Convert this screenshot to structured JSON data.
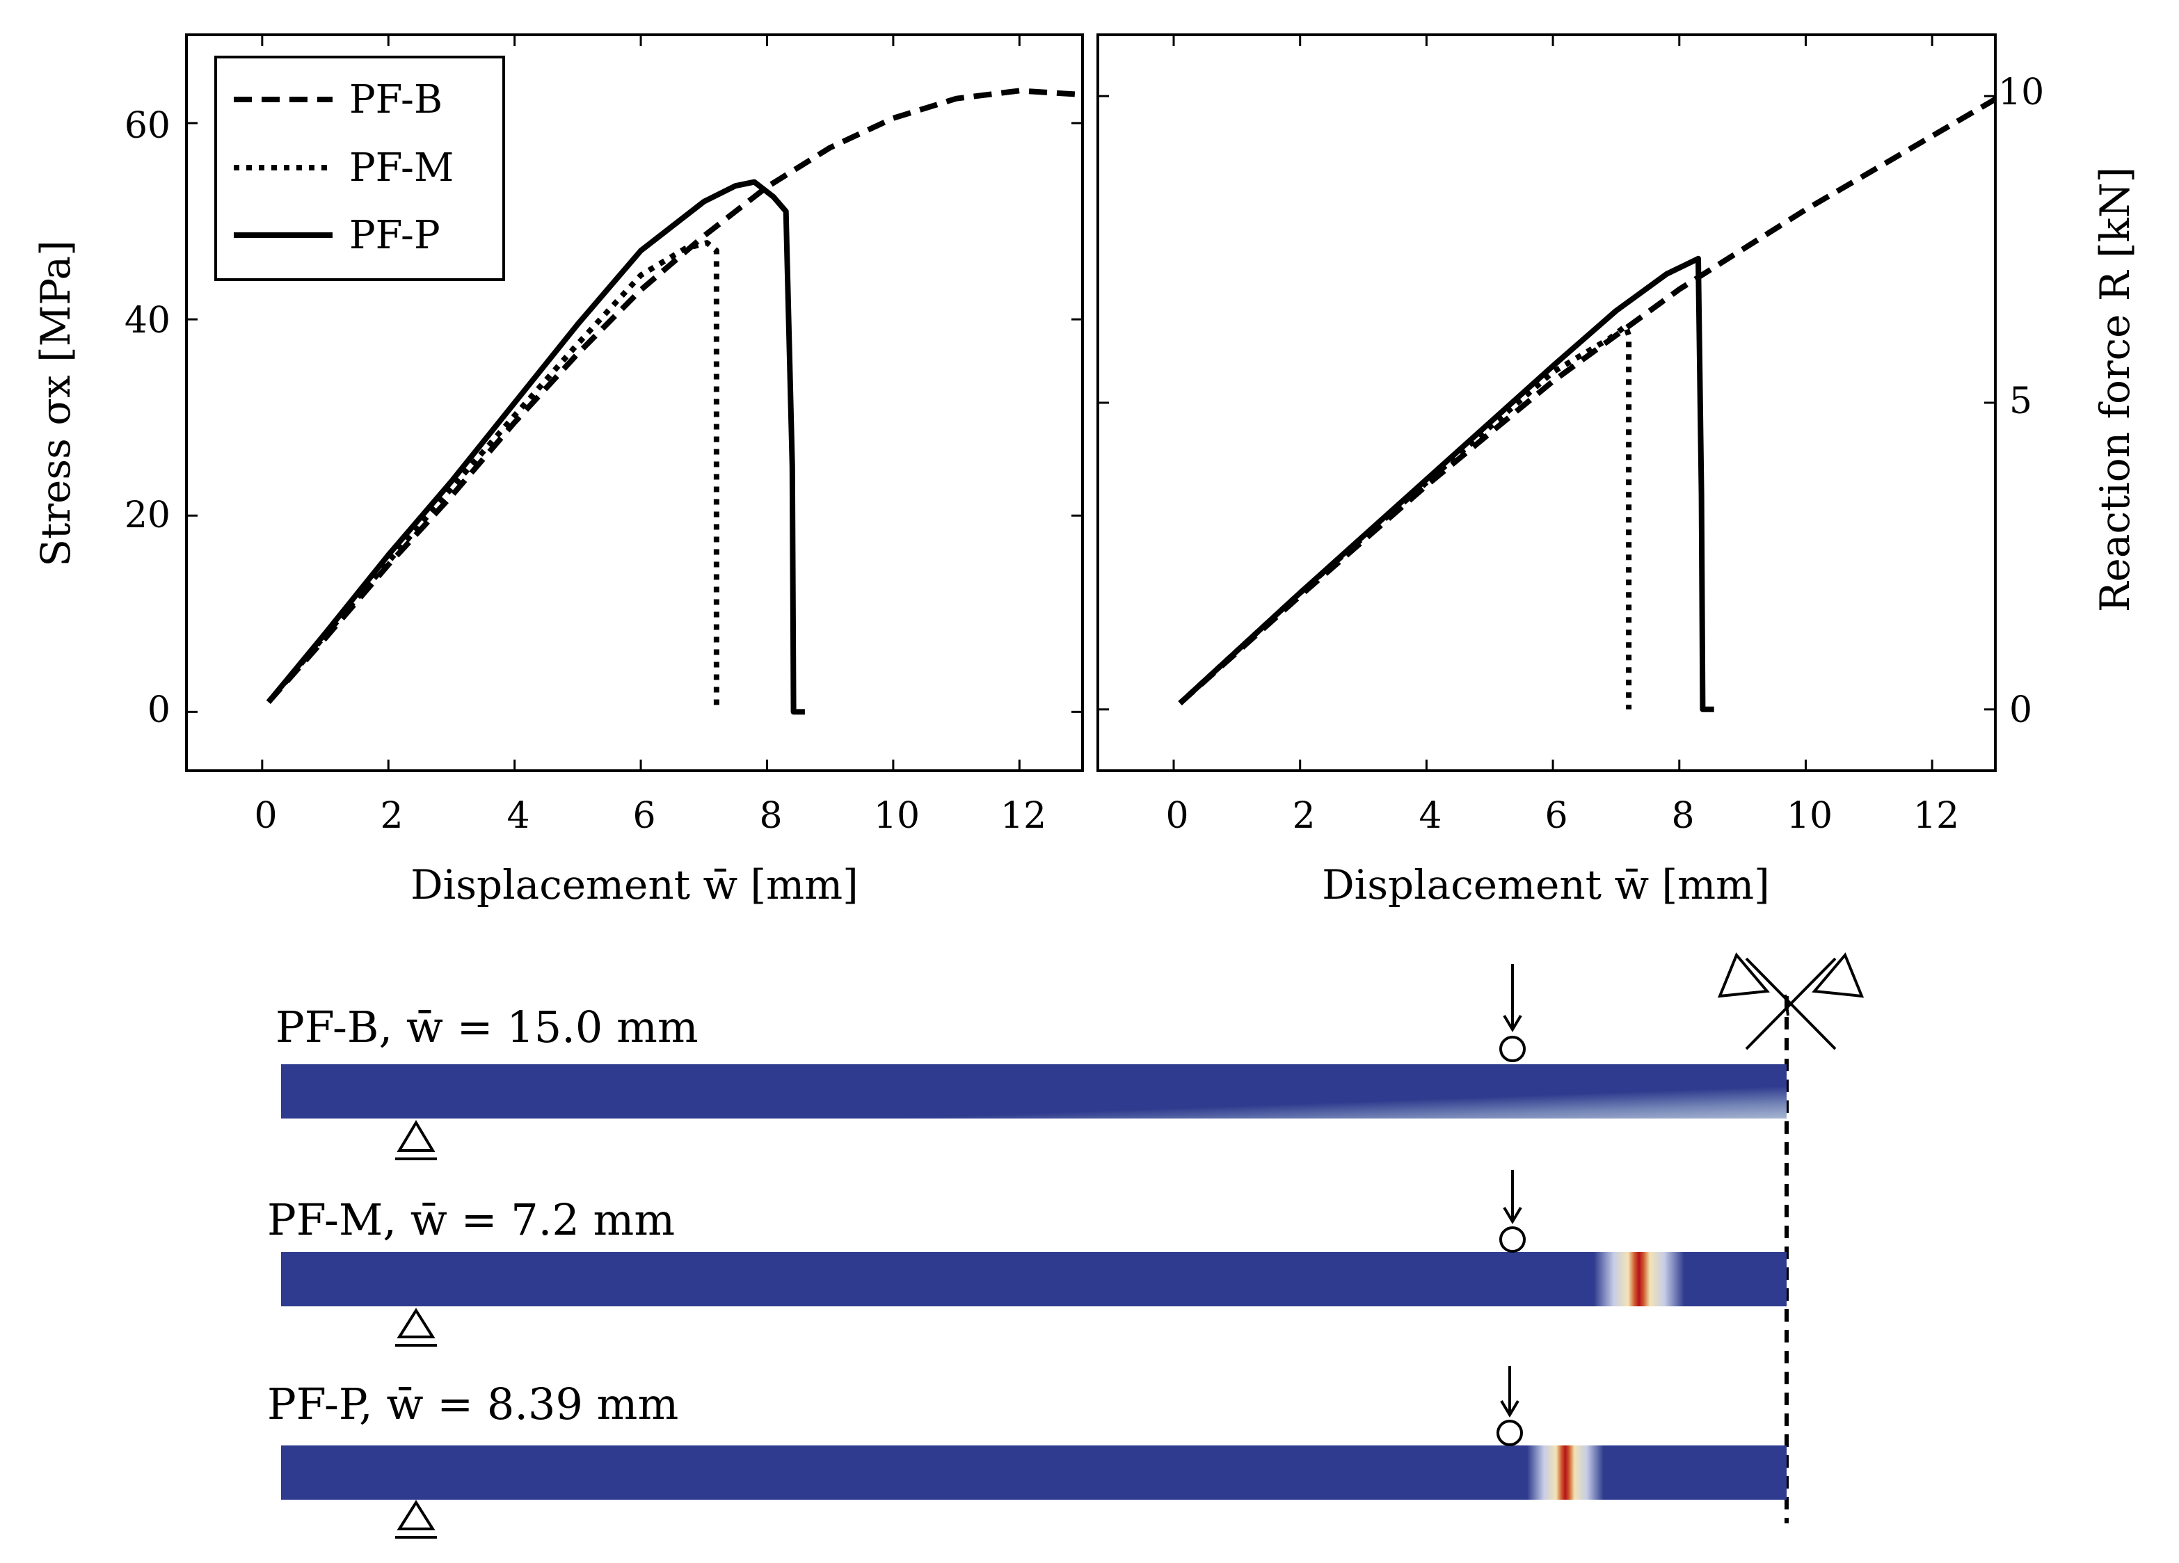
{
  "chart_data": [
    {
      "type": "line",
      "panel": "left",
      "xlabel": "Displacement w̄ [mm]",
      "ylabel": "Stress σx [MPa]",
      "xlim": [
        -1.2,
        13
      ],
      "ylim": [
        -6,
        69
      ],
      "xticks": [
        0,
        2,
        4,
        6,
        8,
        10,
        12
      ],
      "yticks": [
        0,
        20,
        40,
        60
      ],
      "xtick_labels": [
        "0",
        "2",
        "4",
        "6",
        "8",
        "10",
        "12"
      ],
      "ytick_labels": [
        "0",
        "20",
        "40",
        "60"
      ],
      "legend": {
        "position": "top-left",
        "entries": [
          "PF-B",
          "PF-M",
          "PF-P"
        ]
      },
      "series": [
        {
          "name": "PF-B",
          "style": "dashed",
          "x": [
            0.1,
            1,
            2,
            3,
            4,
            5,
            6,
            7,
            8,
            9,
            10,
            11,
            12,
            13
          ],
          "y": [
            1,
            7.5,
            15,
            22,
            29.5,
            36.5,
            43,
            48.5,
            53.5,
            57.5,
            60.5,
            62.5,
            63.3,
            62.9
          ]
        },
        {
          "name": "PF-M",
          "style": "dotted",
          "x": [
            0.1,
            1,
            2,
            3,
            4,
            5,
            6,
            6.7,
            7.05,
            7.2,
            7.2
          ],
          "y": [
            1,
            7.8,
            15.3,
            22.8,
            30.2,
            37.5,
            44.5,
            47.2,
            47.8,
            47,
            0
          ]
        },
        {
          "name": "PF-P",
          "style": "solid",
          "x": [
            0.1,
            1,
            2,
            3,
            4,
            5,
            6,
            7,
            7.5,
            7.8,
            8.1,
            8.3,
            8.4,
            8.42,
            8.6
          ],
          "y": [
            1,
            8,
            16,
            23.5,
            31.5,
            39.5,
            47,
            52,
            53.6,
            54,
            52.5,
            51,
            25,
            0,
            0
          ]
        }
      ]
    },
    {
      "type": "line",
      "panel": "right",
      "xlabel": "Displacement w̄ [mm]",
      "ylabel": "Reaction force R [kN]",
      "xlim": [
        -1.2,
        13
      ],
      "ylim": [
        -1,
        11
      ],
      "xticks": [
        0,
        2,
        4,
        6,
        8,
        10,
        12
      ],
      "yticks": [
        0,
        5,
        10
      ],
      "xtick_labels": [
        "0",
        "2",
        "4",
        "6",
        "8",
        "10",
        "12"
      ],
      "ytick_labels": [
        "0",
        "5",
        "10"
      ],
      "series": [
        {
          "name": "PF-B",
          "style": "dashed",
          "x": [
            0.1,
            2,
            4,
            6,
            8,
            9,
            10,
            11,
            12,
            13
          ],
          "y": [
            0.1,
            1.85,
            3.65,
            5.35,
            6.85,
            7.5,
            8.15,
            8.75,
            9.35,
            9.95
          ]
        },
        {
          "name": "PF-M",
          "style": "dotted",
          "x": [
            0.1,
            2,
            4,
            6,
            6.9,
            7.15,
            7.2,
            7.2
          ],
          "y": [
            0.1,
            1.9,
            3.7,
            5.5,
            6.05,
            6.25,
            6.1,
            0
          ]
        },
        {
          "name": "PF-P",
          "style": "solid",
          "x": [
            0.1,
            2,
            4,
            6,
            7,
            7.8,
            8.3,
            8.35,
            8.37,
            8.55
          ],
          "y": [
            0.1,
            1.9,
            3.75,
            5.6,
            6.5,
            7.1,
            7.35,
            3.5,
            0,
            0
          ]
        }
      ]
    }
  ],
  "beams": [
    {
      "label": "PF-B, w̄ = 15.0 mm",
      "crack_position_fraction": null
    },
    {
      "label": "PF-M, w̄ = 7.2 mm",
      "crack_position_fraction": 0.902
    },
    {
      "label": "PF-P, w̄ = 8.39 mm",
      "crack_position_fraction": 0.853
    }
  ],
  "colors": {
    "beam": "#2e3b8e",
    "damage_high": "#b4121c",
    "damage_mid": "#f2e3b5",
    "line": "#000000"
  }
}
